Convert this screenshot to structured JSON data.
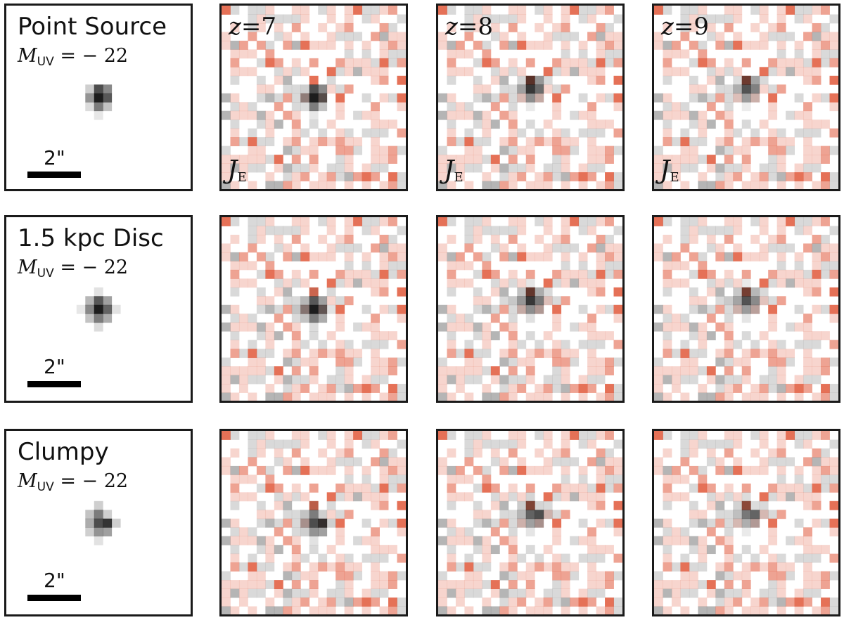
{
  "rows": [
    {
      "title": "Point Source",
      "mag_symbol": "M",
      "mag_sub": "UV",
      "mag_value": " = − 22",
      "scalebar": "2\"",
      "blob": "point"
    },
    {
      "title": "1.5 kpc Disc",
      "mag_symbol": "M",
      "mag_sub": "UV",
      "mag_value": " = − 22",
      "scalebar": "2\"",
      "blob": "disc"
    },
    {
      "title": "Clumpy",
      "mag_symbol": "M",
      "mag_sub": "UV",
      "mag_value": " = − 22",
      "scalebar": "2\"",
      "blob": "clumpy"
    }
  ],
  "columns": [
    {
      "z_symbol": "z",
      "z_value": "=7",
      "band_symbol": "J",
      "band_sub": "E"
    },
    {
      "z_symbol": "z",
      "z_value": "=8",
      "band_symbol": "J",
      "band_sub": "E"
    },
    {
      "z_symbol": "z",
      "z_value": "=9",
      "band_symbol": "J",
      "band_sub": "E"
    }
  ],
  "colors": {
    "frame": "#1a1a1a",
    "noise_red": "#e0583a",
    "noise_gray": "#a8a8a8",
    "source": "#111111"
  }
}
